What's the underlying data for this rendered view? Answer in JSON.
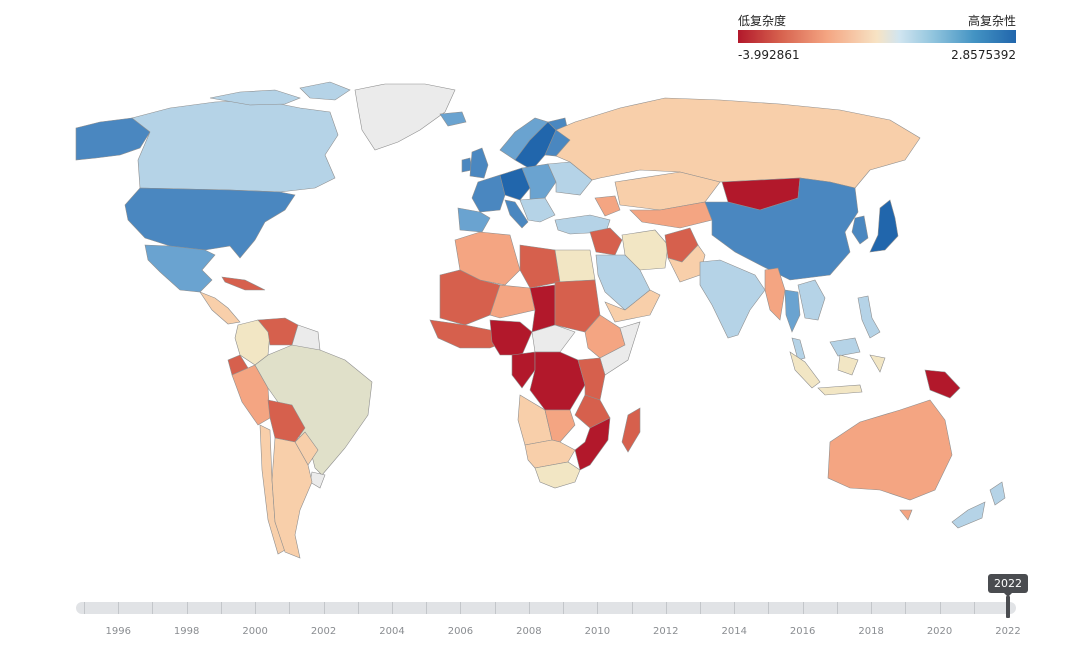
{
  "legend": {
    "low_label": "低复杂度",
    "high_label": "高复杂性",
    "min_value": "-3.992861",
    "max_value": "2.8575392"
  },
  "timeline": {
    "current_year": "2022",
    "years": [
      "1996",
      "1998",
      "2000",
      "2002",
      "2004",
      "2006",
      "2008",
      "2010",
      "2012",
      "2014",
      "2016",
      "2018",
      "2020",
      "2022"
    ],
    "range": [
      1995,
      2022
    ]
  },
  "colors": {
    "dark_red": "#b2182b",
    "red": "#d6604d",
    "salmon": "#f4a582",
    "peach": "#f8cfaa",
    "cream": "#f2e6c4",
    "grayish": "#e0e0c9",
    "light_blue": "#b5d3e7",
    "blue": "#6aa3d0",
    "mid_blue": "#4a87c0",
    "dark_blue": "#2166ac",
    "no_data": "#ebebeb"
  },
  "countries": [
    {
      "name": "Canada",
      "color": "light_blue"
    },
    {
      "name": "Alaska",
      "color": "mid_blue"
    },
    {
      "name": "Greenland",
      "color": "no_data"
    },
    {
      "name": "United States",
      "color": "mid_blue"
    },
    {
      "name": "Mexico",
      "color": "blue"
    },
    {
      "name": "Cuba",
      "color": "red"
    },
    {
      "name": "Central America",
      "color": "peach"
    },
    {
      "name": "Colombia",
      "color": "cream"
    },
    {
      "name": "Venezuela",
      "color": "red"
    },
    {
      "name": "Guianas",
      "color": "no_data"
    },
    {
      "name": "Brazil",
      "color": "grayish"
    },
    {
      "name": "Ecuador",
      "color": "red"
    },
    {
      "name": "Peru",
      "color": "salmon"
    },
    {
      "name": "Bolivia",
      "color": "red"
    },
    {
      "name": "Paraguay",
      "color": "peach"
    },
    {
      "name": "Chile",
      "color": "peach"
    },
    {
      "name": "Argentina",
      "color": "peach"
    },
    {
      "name": "Uruguay",
      "color": "no_data"
    },
    {
      "name": "Iceland",
      "color": "blue"
    },
    {
      "name": "United Kingdom",
      "color": "mid_blue"
    },
    {
      "name": "Ireland",
      "color": "mid_blue"
    },
    {
      "name": "Norway",
      "color": "blue"
    },
    {
      "name": "Sweden",
      "color": "dark_blue"
    },
    {
      "name": "Finland",
      "color": "mid_blue"
    },
    {
      "name": "Western Europe",
      "color": "mid_blue"
    },
    {
      "name": "Germany",
      "color": "dark_blue"
    },
    {
      "name": "Iberia",
      "color": "blue"
    },
    {
      "name": "Italy",
      "color": "mid_blue"
    },
    {
      "name": "Eastern Europe",
      "color": "blue"
    },
    {
      "name": "Balkans",
      "color": "light_blue"
    },
    {
      "name": "Ukraine",
      "color": "light_blue"
    },
    {
      "name": "Russia",
      "color": "peach"
    },
    {
      "name": "Turkey",
      "color": "light_blue"
    },
    {
      "name": "Caucasus",
      "color": "salmon"
    },
    {
      "name": "Kazakhstan",
      "color": "peach"
    },
    {
      "name": "Central Asia",
      "color": "salmon"
    },
    {
      "name": "Mongolia",
      "color": "dark_red"
    },
    {
      "name": "China",
      "color": "mid_blue"
    },
    {
      "name": "Korea",
      "color": "mid_blue"
    },
    {
      "name": "Japan",
      "color": "dark_blue"
    },
    {
      "name": "Middle East",
      "color": "red"
    },
    {
      "name": "Iran",
      "color": "cream"
    },
    {
      "name": "Saudi Arabia",
      "color": "light_blue"
    },
    {
      "name": "Yemen/Oman",
      "color": "peach"
    },
    {
      "name": "Afghanistan",
      "color": "red"
    },
    {
      "name": "Pakistan",
      "color": "peach"
    },
    {
      "name": "India",
      "color": "light_blue"
    },
    {
      "name": "Myanmar",
      "color": "salmon"
    },
    {
      "name": "Thailand",
      "color": "blue"
    },
    {
      "name": "Indochina",
      "color": "light_blue"
    },
    {
      "name": "Malaysia",
      "color": "light_blue"
    },
    {
      "name": "Indonesia",
      "color": "cream"
    },
    {
      "name": "Philippines",
      "color": "light_blue"
    },
    {
      "name": "Papua New Guinea",
      "color": "dark_red"
    },
    {
      "name": "Australia",
      "color": "salmon"
    },
    {
      "name": "New Zealand",
      "color": "light_blue"
    },
    {
      "name": "Morocco/Algeria",
      "color": "salmon"
    },
    {
      "name": "Mauritania/Mali",
      "color": "red"
    },
    {
      "name": "Libya",
      "color": "red"
    },
    {
      "name": "Egypt",
      "color": "cream"
    },
    {
      "name": "Niger",
      "color": "salmon"
    },
    {
      "name": "Chad",
      "color": "dark_red"
    },
    {
      "name": "Sudan",
      "color": "red"
    },
    {
      "name": "West Africa",
      "color": "red"
    },
    {
      "name": "Nigeria",
      "color": "dark_red"
    },
    {
      "name": "Central African Republic",
      "color": "no_data"
    },
    {
      "name": "Ethiopia",
      "color": "salmon"
    },
    {
      "name": "Somalia",
      "color": "no_data"
    },
    {
      "name": "Congo",
      "color": "dark_red"
    },
    {
      "name": "DR Congo",
      "color": "dark_red"
    },
    {
      "name": "East Africa",
      "color": "red"
    },
    {
      "name": "Tanzania",
      "color": "red"
    },
    {
      "name": "Angola",
      "color": "peach"
    },
    {
      "name": "Zambia",
      "color": "salmon"
    },
    {
      "name": "Mozambique",
      "color": "dark_red"
    },
    {
      "name": "Namibia/Botswana",
      "color": "peach"
    },
    {
      "name": "South Africa",
      "color": "cream"
    },
    {
      "name": "Madagascar",
      "color": "red"
    }
  ]
}
